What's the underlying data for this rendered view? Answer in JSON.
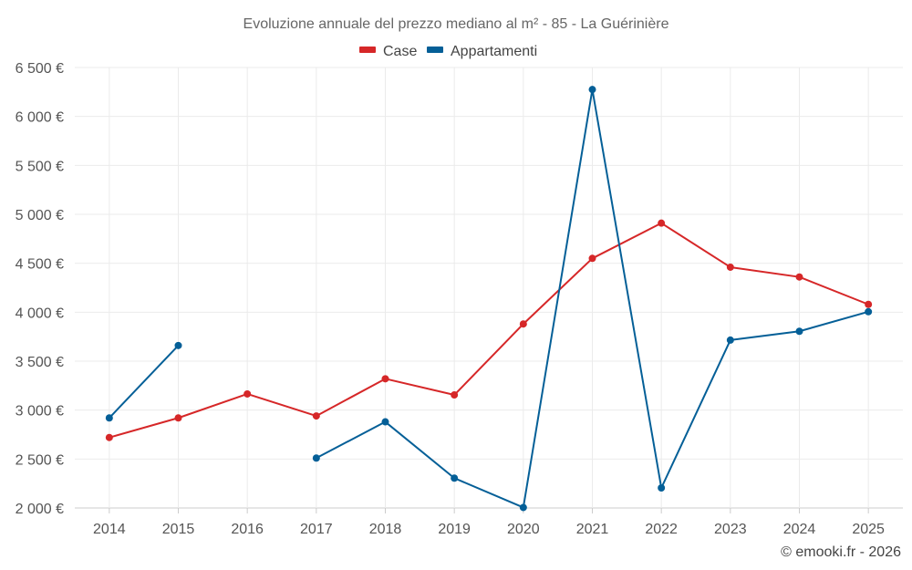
{
  "chart_data": {
    "type": "line",
    "title": "Evoluzione annuale del prezzo mediano al m² - 85 - La Guérinière",
    "categories": [
      "2014",
      "2015",
      "2016",
      "2017",
      "2018",
      "2019",
      "2020",
      "2021",
      "2022",
      "2023",
      "2024",
      "2025"
    ],
    "ylim": [
      2000,
      6500
    ],
    "yticks": [
      2000,
      2500,
      3000,
      3500,
      4000,
      4500,
      5000,
      5500,
      6000,
      6500
    ],
    "ytick_labels": [
      "2 000 €",
      "2 500 €",
      "3 000 €",
      "3 500 €",
      "4 000 €",
      "4 500 €",
      "5 000 €",
      "5 500 €",
      "6 000 €",
      "6 500 €"
    ],
    "grid": true,
    "legend_position": "top-center",
    "series": [
      {
        "name": "Case",
        "color": "#d62728",
        "values": [
          2720,
          2920,
          3165,
          2940,
          3320,
          3155,
          3880,
          4550,
          4910,
          4460,
          4360,
          4080
        ]
      },
      {
        "name": "Appartamenti",
        "color": "#045f97",
        "values": [
          2920,
          3660,
          null,
          2510,
          2880,
          2305,
          2005,
          6275,
          2205,
          3715,
          3805,
          4005
        ]
      }
    ],
    "credit": "© emooki.fr - 2026"
  }
}
